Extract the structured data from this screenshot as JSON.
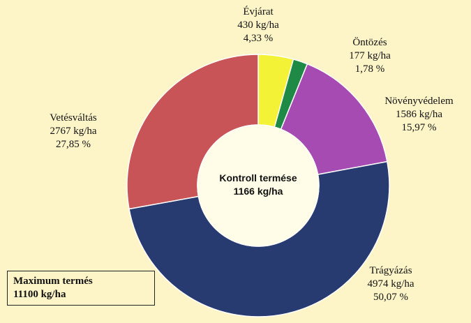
{
  "chart_data": {
    "type": "pie",
    "series": [
      {
        "name": "Évjárat",
        "value": 430,
        "value_text": "430 kg/ha",
        "percent_text": "4,33 %",
        "color": "#f4f236"
      },
      {
        "name": "Öntözés",
        "value": 177,
        "value_text": "177 kg/ha",
        "percent_text": "1,78 %",
        "color": "#1f8a46"
      },
      {
        "name": "Növényvédelem",
        "value": 1586,
        "value_text": "1586 kg/ha",
        "percent_text": "15,97 %",
        "color": "#a54bb2"
      },
      {
        "name": "Trágyázás",
        "value": 4974,
        "value_text": "4974 kg/ha",
        "percent_text": "50,07 %",
        "color": "#283b70"
      },
      {
        "name": "Vetésváltás",
        "value": 2767,
        "value_text": "2767 kg/ha",
        "percent_text": "27,85 %",
        "color": "#c95458"
      }
    ],
    "center": {
      "title": "Kontroll termése",
      "value": "1166 kg/ha"
    },
    "maximum": {
      "title": "Maximum termés",
      "value": "11100 kg/ha"
    }
  }
}
